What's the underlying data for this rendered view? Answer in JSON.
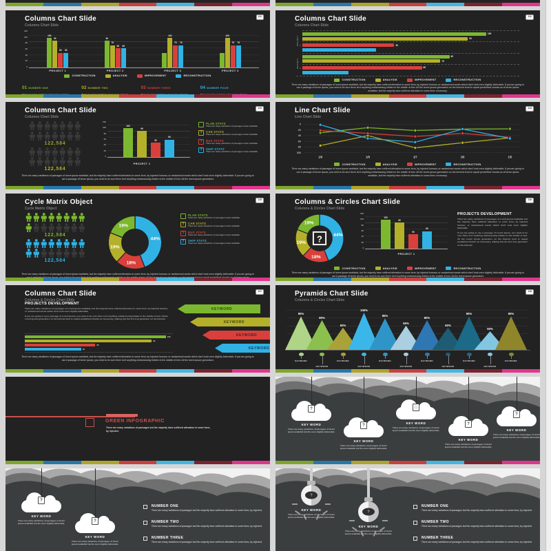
{
  "page": {
    "background": "#D6D6D6",
    "edge_background": "#F0F0F0"
  },
  "colors": {
    "slide_bg": "#222222",
    "cloud_slide_bg": "#3B3E3F",
    "green": "#7CB82F",
    "olive": "#B5B02A",
    "red": "#D9403C",
    "cyan": "#30B2E5",
    "title": "#FFFFFF",
    "subtitle": "#7E7E7E",
    "body": "#ACACAC",
    "badge_bg": "#FFFFFF",
    "badge_text": "#333333",
    "picto_dim": "#3A3A3A",
    "stripe": [
      "#7FA62C",
      "#2878A8",
      "#AFA42C",
      "#C84040",
      "#43B6E0",
      "#7A2430",
      "#E0368E"
    ]
  },
  "legend": [
    {
      "label": "CONSTRUCTION",
      "color": "green"
    },
    {
      "label": "ANALYSIS",
      "color": "olive"
    },
    {
      "label": "IMPROVEMENT",
      "color": "red"
    },
    {
      "label": "RECONSTRUCTION",
      "color": "cyan"
    }
  ],
  "stats": [
    {
      "title": "PLAN STATS",
      "icon": "",
      "color": "green"
    },
    {
      "title": "CAR STATS",
      "icon": "?",
      "color": "olive"
    },
    {
      "title": "BUS STATS",
      "icon": "?",
      "color": "red"
    },
    {
      "title": "SHIP STATS",
      "icon": "?",
      "color": "cyan"
    }
  ],
  "shared": {
    "lorem_long": "There are many variations of passages of lorem ipsum available, but the majority have suffered alteration in some form, by injected humour, or randomised words which don't look even slightly believable. If you are going to use A passage of lorem ipsum, you need to be sure there isn't anything embarrassing hidden in the middle of text. All the lorem ipsum generators on the internet tend to repeat predefined chunks as of lorem ipsum available, but the majority have suffered alteration in some form: necessary.",
    "lorem_short": "There are many variations of passages of lorem ipsum available, but the majority have suffered alteration in some form, by injected humour, or randomised words which don't look even slightly believable. If you are going to use A passage of lorem ipsum, you need to be sure there isn't anything embarrassing hidden in the middle of text. All the lorem ipsum generators",
    "num_text": "There are many variations of passages of lorem ipsum available",
    "stat_text": "There are many variations of passages lorem available",
    "cloud_text": "There are many variations of passages of lorem ipsum available but the even slightly believable.",
    "number_text": "There are many variations of passages but the majority have suffered alteration in some form, by injected.",
    "proj_dev_title": "PROJECTS DEVELOPMENT",
    "proj_dev_p1": "There are many variations of passages of Lorem Ipsum available, but the majority have suffered alteration in some form, by injected humour, or randomised words which don't look even slightly believable",
    "proj_dev_p2": "If you are going to use a passage of Lorem Ipsum, you need to be sure there isn't anything embarrassing hidden in the middle of text. All the Lorem Ipsum generators on the Internet tend to repeat predefined chunks as necessary, making this the first true generator on the Internet."
  },
  "chart_data": [
    {
      "slide": 1,
      "type": "bar",
      "title": "Columns Chart Slide",
      "categories": [
        "PROJECT 1",
        "PROJECT 2",
        "PROJECT 3",
        "PROJECT 3"
      ],
      "ylim": [
        0,
        120
      ],
      "yticks": [
        "120",
        "100",
        "80",
        "60",
        "40",
        "20",
        "0"
      ],
      "grid": true,
      "legend_position": "bottom",
      "series": [
        {
          "name": "CONSTRUCTION",
          "color": "green",
          "values": [
            100,
            90,
            50,
            50
          ],
          "labels": [
            "100",
            "90",
            "",
            ""
          ]
        },
        {
          "name": "ANALYSIS",
          "color": "olive",
          "values": [
            90,
            75,
            100,
            100
          ],
          "labels": [
            "90",
            "75",
            "100",
            "100"
          ]
        },
        {
          "name": "IMPROVEMENT",
          "color": "red",
          "values": [
            50,
            65,
            75,
            75
          ],
          "labels": [
            "50",
            "65",
            "75",
            "75"
          ]
        },
        {
          "name": "RECONSTRUCTION",
          "color": "cyan",
          "values": [
            50,
            65,
            75,
            75
          ],
          "labels": [
            "50",
            "65",
            "75",
            "75"
          ]
        }
      ]
    },
    {
      "slide": 2,
      "type": "bar",
      "orientation": "horizontal",
      "categories": [
        "PROJECT 1",
        "PROJECT 2"
      ],
      "xlim": [
        0,
        118
      ],
      "series": [
        {
          "name": "CONSTRUCTION",
          "color": "green",
          "values": [
            100,
            80
          ],
          "labels": [
            "100",
            "80"
          ]
        },
        {
          "name": "ANALYSIS",
          "color": "olive",
          "values": [
            90,
            75
          ],
          "labels": [
            "90",
            "75"
          ]
        },
        {
          "name": "IMPROVEMENT",
          "color": "red",
          "values": [
            50,
            65
          ],
          "labels": [
            "50",
            "65"
          ]
        },
        {
          "name": "RECONSTRUCTION",
          "color": "cyan",
          "values": [
            40,
            25
          ],
          "labels": [
            "",
            ""
          ]
        }
      ]
    },
    {
      "slide": 3,
      "type": "bar",
      "categories": [
        "PROJECT 1"
      ],
      "ylim": [
        0,
        120
      ],
      "yticks": [
        "120",
        "100",
        "80",
        "60",
        "40",
        "20",
        "0"
      ],
      "bars": [
        {
          "color": "green",
          "value": 100,
          "label": "100"
        },
        {
          "color": "olive",
          "value": 90,
          "label": "90"
        },
        {
          "color": "red",
          "value": 50,
          "label": "50"
        },
        {
          "color": "cyan",
          "value": 60,
          "label": "60"
        }
      ],
      "pictograms": [
        {
          "value": "122,584",
          "number_color": "#9DA32C"
        },
        {
          "value": "122,584",
          "number_color": "#B9B42A"
        }
      ]
    },
    {
      "slide": 4,
      "type": "line",
      "x": [
        "1/9",
        "1/8",
        "1/7",
        "1/6",
        "1/5"
      ],
      "yticks": [
        "0",
        "20",
        "40",
        "60",
        "80",
        "100"
      ],
      "y_inverted": true,
      "grid": "dashed",
      "series": [
        {
          "name": "CONSTRUCTION",
          "color": "green",
          "values": [
            30,
            12,
            22,
            17,
            16
          ]
        },
        {
          "name": "ANALYSIS",
          "color": "olive",
          "values": [
            75,
            40,
            83,
            65,
            48
          ]
        },
        {
          "name": "IMPROVEMENT",
          "color": "red",
          "values": [
            22,
            32,
            43,
            32,
            46
          ]
        },
        {
          "name": "RECONSTRUCTION",
          "color": "cyan",
          "values": [
            2,
            50,
            63,
            17,
            50
          ]
        }
      ]
    },
    {
      "slide": 5,
      "type": "pie",
      "donut": true,
      "slices": [
        {
          "pct": 44,
          "label": "44%",
          "color": "cyan"
        },
        {
          "pct": 18,
          "label": "18%",
          "color": "red"
        },
        {
          "pct": 19,
          "label": "19%",
          "color": "olive"
        },
        {
          "pct": 19,
          "label": "19%",
          "color": "green"
        }
      ],
      "pictograms": [
        {
          "value": "122,584",
          "number_color": "#7CB82F",
          "filled": 9
        },
        {
          "value": "122,584",
          "number_color": "#30B2E5",
          "filled": 10
        }
      ]
    },
    {
      "slide": 6,
      "type": "pie",
      "donut": true,
      "center_glyph": "?",
      "slices": [
        {
          "pct": 44,
          "label": "44%",
          "color": "cyan"
        },
        {
          "pct": 18,
          "label": "18%",
          "color": "red"
        },
        {
          "pct": 19,
          "label": "19%",
          "color": "olive"
        },
        {
          "pct": 19,
          "label": "19%",
          "color": "green"
        }
      ],
      "bars": [
        {
          "color": "green",
          "value": 100,
          "label": "100"
        },
        {
          "color": "olive",
          "value": 90,
          "label": "90"
        },
        {
          "color": "red",
          "value": 50,
          "label": "50"
        },
        {
          "color": "cyan",
          "value": 60,
          "label": "60"
        }
      ],
      "bar_categories": [
        "PROJECT 1"
      ],
      "yticks": [
        "120",
        "100",
        "80",
        "60",
        "40",
        "20",
        "0"
      ]
    },
    {
      "slide": 7,
      "type": "bar",
      "orientation": "horizontal",
      "bars": [
        {
          "color": "green",
          "value": 100,
          "label": "100"
        },
        {
          "color": "olive",
          "value": 90,
          "label": "90"
        },
        {
          "color": "red",
          "value": 50,
          "label": "50"
        },
        {
          "color": "cyan",
          "value": 40,
          "label": "40"
        }
      ]
    },
    {
      "slide": 8,
      "type": "pyramid",
      "items": [
        {
          "pct": 90,
          "label": "90%",
          "color": "#AFD488",
          "keyword": "KEYWORD"
        },
        {
          "pct": 80,
          "label": "80%",
          "color": "#8CC04E",
          "keyword": "KEYWORD"
        },
        {
          "pct": 60,
          "label": "60%",
          "color": "#A8A239",
          "keyword": "KEYWORD"
        },
        {
          "pct": 100,
          "label": "100%",
          "color": "#3BB6E8",
          "keyword": "KEYWORD"
        },
        {
          "pct": 85,
          "label": "85%",
          "color": "#2F95C8",
          "keyword": "KEYWORD"
        },
        {
          "pct": 65,
          "label": "65%",
          "color": "#A9CFE0",
          "keyword": "KEYWORD"
        },
        {
          "pct": 80,
          "label": "80%",
          "color": "#2E77B3",
          "keyword": "KEYWORD"
        },
        {
          "pct": 60,
          "label": "60%",
          "color": "#1D5C74",
          "keyword": "KEYWORD"
        },
        {
          "pct": 90,
          "label": "90%",
          "color": "#1A6A88",
          "keyword": "KEYWORD"
        },
        {
          "pct": 50,
          "label": "50%",
          "color": "#82C7E2",
          "keyword": "KEYWORD"
        },
        {
          "pct": 90,
          "label": "90%",
          "color": "#8F862C",
          "keyword": "KEYWORD"
        }
      ]
    }
  ],
  "slides": [
    {
      "type": "grouped_bars",
      "title": "Columns Chart Slide",
      "subtitle": "Columns Chart Slide",
      "badge": "111",
      "chart": 0,
      "numbers": [
        {
          "num": "01",
          "title": "NUMBER ONE",
          "color": "green"
        },
        {
          "num": "02",
          "title": "NUMBER TWO",
          "color": "olive"
        },
        {
          "num": "03",
          "title": "NUMBER THREE",
          "color": "red"
        },
        {
          "num": "04",
          "title": "NUMBER FOUR",
          "color": "cyan"
        }
      ]
    },
    {
      "type": "hbars",
      "title": "Columns Chart Slide",
      "subtitle": "Columns Chart Slide",
      "badge": "112",
      "chart": 1,
      "paragraph": "lorem_long"
    },
    {
      "type": "picto_bars",
      "title": "Columns Chart Slide",
      "subtitle": "Columns Chart Slide",
      "badge": "113",
      "chart": 2,
      "paragraph": "lorem_short"
    },
    {
      "type": "line",
      "title": "Line Chart Slide",
      "subtitle": "Line Chart Slide",
      "badge": "114",
      "chart": 3,
      "paragraph": "lorem_long"
    },
    {
      "type": "cycle",
      "title": "Cycle Matrix Object",
      "subtitle": "Cycle Matrix Object",
      "badge": "115",
      "chart": 4,
      "paragraph": "lorem_long"
    },
    {
      "type": "donut_bars",
      "title": "Columns & Circles Chart Slide",
      "subtitle": "Columns & Circles Chart Slide",
      "badge": "116",
      "chart": 5,
      "paragraph": "lorem_short"
    },
    {
      "type": "keywords",
      "title": "Columns Chart Slide",
      "subtitle": "Columns & Circles Chart Slide",
      "badge": "117",
      "chart": 6,
      "paragraph": "lorem_short",
      "keywords": [
        {
          "label": "KEYWORD",
          "color": "green"
        },
        {
          "label": "KEYWORD",
          "color": "olive"
        },
        {
          "label": "KEYWORD",
          "color": "red"
        },
        {
          "label": "KEYWORD",
          "color": "cyan"
        }
      ]
    },
    {
      "type": "pyramids",
      "title": "Pyramids Chart Slide",
      "subtitle": "Columns & Circles Chart Slide",
      "badge": "118",
      "chart": 7
    },
    {
      "type": "green",
      "heading": "GREEN INFOGRAPHIC"
    },
    {
      "type": "clouds5",
      "items": [
        {
          "label": "KEY WORD",
          "icon": "?"
        },
        {
          "label": "KEY WORD",
          "icon": "?"
        },
        {
          "label": "KEY WORD",
          "icon": "□"
        },
        {
          "label": "KEY WORD",
          "icon": "?"
        },
        {
          "label": "KEY WORD",
          "icon": "?"
        }
      ]
    },
    {
      "type": "clouds_numbers",
      "items": [
        {
          "label": "KEY WORD",
          "icon": "?"
        },
        {
          "label": "KEY WORD",
          "icon": "?"
        }
      ],
      "list": [
        {
          "title": "NUMBER ONE"
        },
        {
          "title": "NUMBER TWO"
        },
        {
          "title": "NUMBER THREE"
        }
      ]
    },
    {
      "type": "bulbs_numbers",
      "items": [
        {
          "label": "KEY WORD",
          "icon": "?"
        },
        {
          "label": "KEY WORD",
          "icon": "?"
        }
      ],
      "list": [
        {
          "title": "NUMBER ONE"
        },
        {
          "title": "NUMBER TWO"
        },
        {
          "title": "NUMBER THREE"
        }
      ]
    }
  ]
}
